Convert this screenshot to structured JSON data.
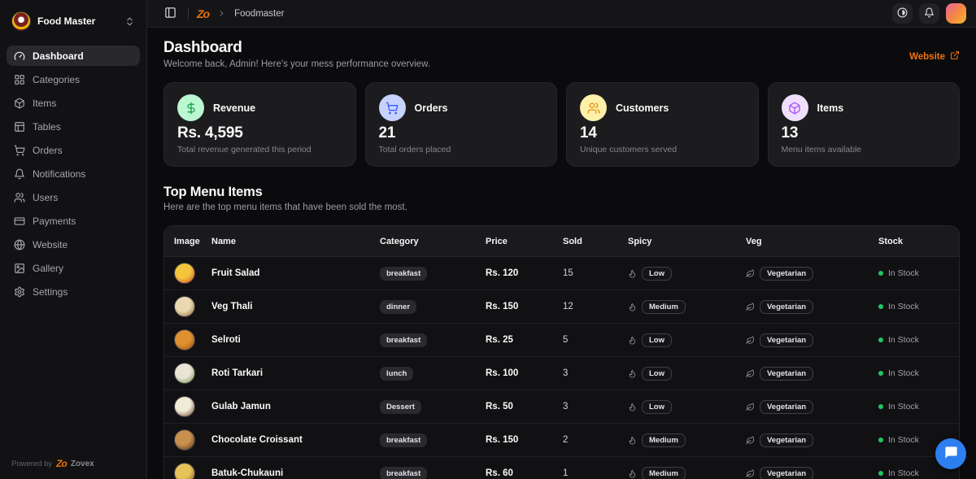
{
  "sidebar": {
    "brand": "Food Master",
    "items": [
      {
        "label": "Dashboard",
        "icon": "gauge",
        "active": true
      },
      {
        "label": "Categories",
        "icon": "grid",
        "active": false
      },
      {
        "label": "Items",
        "icon": "box",
        "active": false
      },
      {
        "label": "Tables",
        "icon": "table",
        "active": false
      },
      {
        "label": "Orders",
        "icon": "cart",
        "active": false
      },
      {
        "label": "Notifications",
        "icon": "bell",
        "active": false
      },
      {
        "label": "Users",
        "icon": "users",
        "active": false
      },
      {
        "label": "Payments",
        "icon": "card",
        "active": false
      },
      {
        "label": "Website",
        "icon": "globe",
        "active": false
      },
      {
        "label": "Gallery",
        "icon": "image",
        "active": false
      },
      {
        "label": "Settings",
        "icon": "gear",
        "active": false
      }
    ],
    "footer": {
      "powered_by": "Powered by",
      "logo_text": "Zo",
      "brand": "Zovex"
    }
  },
  "topbar": {
    "logo_text": "Zo",
    "breadcrumb": "Foodmaster"
  },
  "page": {
    "title": "Dashboard",
    "subtitle": "Welcome back, Admin! Here's your mess performance overview.",
    "website_link": "Website"
  },
  "stats": [
    {
      "label": "Revenue",
      "value": "Rs. 4,595",
      "caption": "Total revenue generated this period",
      "icon": "dollar",
      "icon_bg": "#bbf7d0",
      "icon_color": "#16a34a"
    },
    {
      "label": "Orders",
      "value": "21",
      "caption": "Total orders placed",
      "icon": "cart",
      "icon_bg": "#c7d2fe",
      "icon_color": "#3b5bf6"
    },
    {
      "label": "Customers",
      "value": "14",
      "caption": "Unique customers served",
      "icon": "users",
      "icon_bg": "#fdf0a8",
      "icon_color": "#ea8a0c"
    },
    {
      "label": "Items",
      "value": "13",
      "caption": "Menu items available",
      "icon": "cube",
      "icon_bg": "#f0dffc",
      "icon_color": "#a855f7"
    }
  ],
  "menu_section": {
    "title": "Top Menu Items",
    "subtitle": "Here are the top menu items that have been sold the most."
  },
  "table": {
    "headers": [
      "Image",
      "Name",
      "Category",
      "Price",
      "Sold",
      "Spicy",
      "Veg",
      "Stock"
    ],
    "rows": [
      {
        "name": "Fruit Salad",
        "category": "breakfast",
        "price": "Rs. 120",
        "sold": "15",
        "spicy": "Low",
        "veg": "Vegetarian",
        "stock": "In Stock",
        "thumb": [
          "#f2c53d",
          "#d23b27"
        ]
      },
      {
        "name": "Veg Thali",
        "category": "dinner",
        "price": "Rs. 150",
        "sold": "12",
        "spicy": "Medium",
        "veg": "Vegetarian",
        "stock": "In Stock",
        "thumb": [
          "#e8d9b0",
          "#8a5a2a"
        ]
      },
      {
        "name": "Selroti",
        "category": "breakfast",
        "price": "Rs. 25",
        "sold": "5",
        "spicy": "Low",
        "veg": "Vegetarian",
        "stock": "In Stock",
        "thumb": [
          "#e0902e",
          "#8a4a1a"
        ]
      },
      {
        "name": "Roti Tarkari",
        "category": "lunch",
        "price": "Rs. 100",
        "sold": "3",
        "spicy": "Low",
        "veg": "Vegetarian",
        "stock": "In Stock",
        "thumb": [
          "#e9e4d5",
          "#6a8a3a"
        ]
      },
      {
        "name": "Gulab Jamun",
        "category": "Dessert",
        "price": "Rs. 50",
        "sold": "3",
        "spicy": "Low",
        "veg": "Vegetarian",
        "stock": "In Stock",
        "thumb": [
          "#f0ead8",
          "#5a2f16"
        ]
      },
      {
        "name": "Chocolate Croissant",
        "category": "breakfast",
        "price": "Rs. 150",
        "sold": "2",
        "spicy": "Medium",
        "veg": "Vegetarian",
        "stock": "In Stock",
        "thumb": [
          "#c98f4e",
          "#4a2c14"
        ]
      },
      {
        "name": "Batuk-Chukauni",
        "category": "breakfast",
        "price": "Rs. 60",
        "sold": "1",
        "spicy": "Medium",
        "veg": "Vegetarian",
        "stock": "In Stock",
        "thumb": [
          "#e6c25a",
          "#7a4a1e"
        ]
      }
    ]
  },
  "colors": {
    "accent_orange": "#f1720e",
    "stock_green": "#22c55e",
    "chat_blue": "#2d7ff0"
  }
}
